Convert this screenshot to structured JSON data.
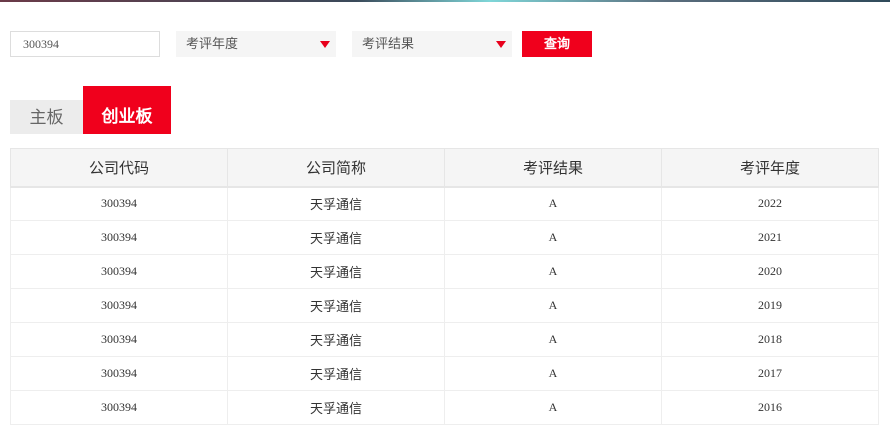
{
  "search": {
    "code_value": "300394",
    "year_placeholder": "考评年度",
    "result_placeholder": "考评结果",
    "query_label": "查询"
  },
  "tabs": [
    {
      "label": "主板",
      "active": false
    },
    {
      "label": "创业板",
      "active": true
    }
  ],
  "table": {
    "headers": [
      "公司代码",
      "公司简称",
      "考评结果",
      "考评年度"
    ],
    "rows": [
      [
        "300394",
        "天孚通信",
        "A",
        "2022"
      ],
      [
        "300394",
        "天孚通信",
        "A",
        "2021"
      ],
      [
        "300394",
        "天孚通信",
        "A",
        "2020"
      ],
      [
        "300394",
        "天孚通信",
        "A",
        "2019"
      ],
      [
        "300394",
        "天孚通信",
        "A",
        "2018"
      ],
      [
        "300394",
        "天孚通信",
        "A",
        "2017"
      ],
      [
        "300394",
        "天孚通信",
        "A",
        "2016"
      ]
    ]
  },
  "colors": {
    "accent": "#f0001c",
    "header_bg": "#f5f5f5",
    "tab_inactive_bg": "#ececec"
  }
}
